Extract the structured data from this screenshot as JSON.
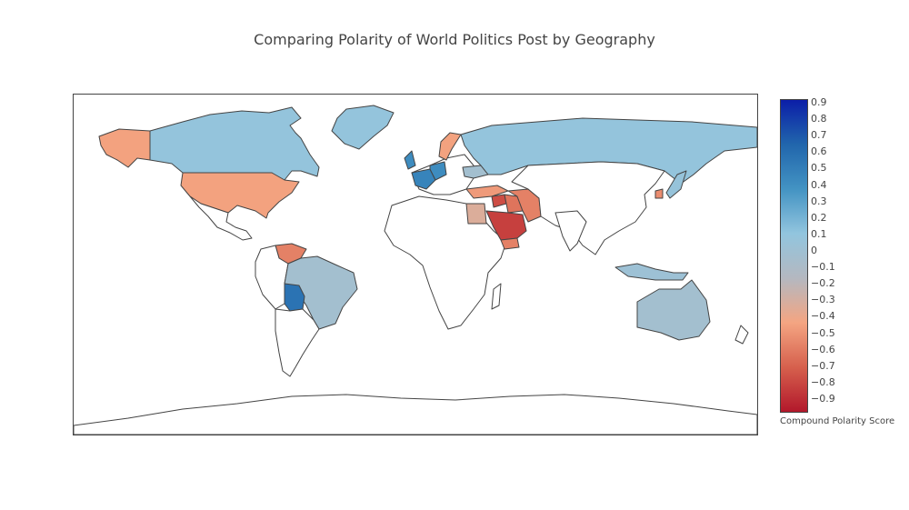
{
  "title": "Comparing Polarity of World Politics Post by Geography",
  "colorbar": {
    "title": "Compound Polarity Score",
    "min": -0.95,
    "max": 0.95,
    "ticks": [
      "0.9",
      "0.8",
      "0.7",
      "0.6",
      "0.5",
      "0.4",
      "0.3",
      "0.2",
      "0.1",
      "0",
      "−0.1",
      "−0.2",
      "−0.3",
      "−0.4",
      "−0.5",
      "−0.6",
      "−0.7",
      "−0.8",
      "−0.9"
    ],
    "colorscale": [
      "#b2182b",
      "#d6604d",
      "#f4a582",
      "#b4b8c0",
      "#92c5de",
      "#4393c3",
      "#2166ac",
      "#0b1ea8"
    ]
  },
  "colors": {
    "no_data": "#ffffff",
    "border": "#444444"
  },
  "chart_data": {
    "type": "choropleth",
    "projection": "equirectangular",
    "values": [
      {
        "country": "Canada",
        "value": 0.12
      },
      {
        "country": "United States",
        "value": -0.42
      },
      {
        "country": "Greenland",
        "value": 0.12
      },
      {
        "country": "Russia",
        "value": 0.12
      },
      {
        "country": "Sweden",
        "value": -0.42
      },
      {
        "country": "United Kingdom",
        "value": 0.45
      },
      {
        "country": "France",
        "value": 0.5
      },
      {
        "country": "Germany",
        "value": 0.45
      },
      {
        "country": "Ukraine",
        "value": 0.0
      },
      {
        "country": "Turkey",
        "value": -0.45
      },
      {
        "country": "Syria",
        "value": -0.75
      },
      {
        "country": "Iran",
        "value": -0.55
      },
      {
        "country": "Iraq",
        "value": -0.6
      },
      {
        "country": "Saudi Arabia",
        "value": -0.8
      },
      {
        "country": "Yemen",
        "value": -0.55
      },
      {
        "country": "Egypt",
        "value": -0.3
      },
      {
        "country": "South Korea",
        "value": -0.5
      },
      {
        "country": "Japan",
        "value": 0.1
      },
      {
        "country": "Venezuela",
        "value": -0.55
      },
      {
        "country": "Brazil",
        "value": 0.0
      },
      {
        "country": "Bolivia",
        "value": 0.6
      },
      {
        "country": "Australia",
        "value": 0.0
      },
      {
        "country": "Indonesia",
        "value": 0.05
      }
    ]
  }
}
